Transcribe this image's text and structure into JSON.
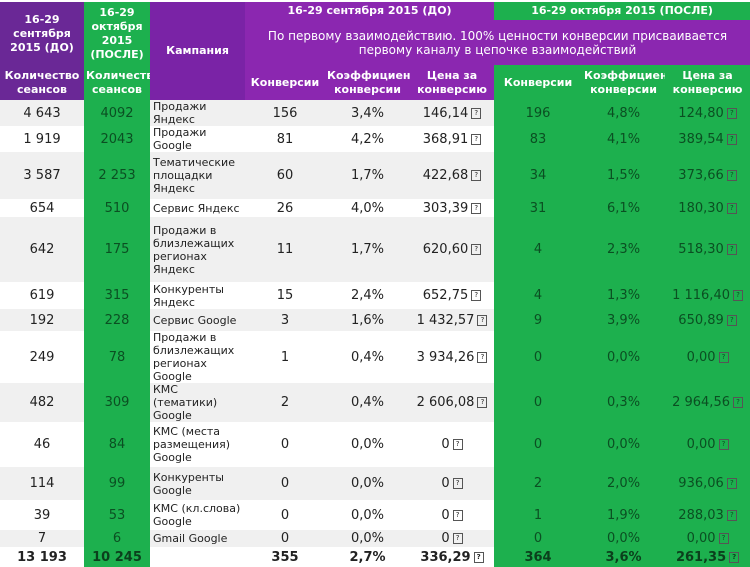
{
  "header": {
    "before_period": "16-29 сентября 2015 (ДО)",
    "after_period": "16-29 октября 2015 (ПОСЛЕ)",
    "sessions": "Количество сеансов",
    "campaign": "Кампания",
    "period_before_top": "16-29 сентября 2015 (ДО)",
    "period_after_top": "16-29 октября 2015 (ПОСЛЕ)",
    "model": "По первому взаимодействию. 100% ценности конверсии присваивается первому каналу в цепочке взаимодействий",
    "conv": "Конверсии",
    "rate": "Коэффициент конверсии",
    "cpa": "Цена за конверсию"
  },
  "rows": [
    [
      "4 643",
      "4092",
      "Продажи Яндекс",
      "156",
      "3,4%",
      "146,14",
      "196",
      "4,8%",
      "124,80"
    ],
    [
      "1 919",
      "2043",
      "Продажи Google",
      "81",
      "4,2%",
      "368,91",
      "83",
      "4,1%",
      "389,54"
    ],
    [
      "3 587",
      "2 253",
      "Тематические площадки Яндекс",
      "60",
      "1,7%",
      "422,68",
      "34",
      "1,5%",
      "373,66"
    ],
    [
      "654",
      "510",
      "Сервис Яндекс",
      "26",
      "4,0%",
      "303,39",
      "31",
      "6,1%",
      "180,30"
    ],
    [
      "642",
      "175",
      "Продажи в близлежащих регионах Яндекс",
      "11",
      "1,7%",
      "620,60",
      "4",
      "2,3%",
      "518,30"
    ],
    [
      "619",
      "315",
      "Конкуренты Яндекс",
      "15",
      "2,4%",
      "652,75",
      "4",
      "1,3%",
      "1 116,40"
    ],
    [
      "192",
      "228",
      "Сервис Google",
      "3",
      "1,6%",
      "1 432,57",
      "9",
      "3,9%",
      "650,89"
    ],
    [
      "249",
      "78",
      "Продажи в близлежащих регионах Google",
      "1",
      "0,4%",
      "3 934,26",
      "0",
      "0,0%",
      "0,00"
    ],
    [
      "482",
      "309",
      "КМС (тематики) Google",
      "2",
      "0,4%",
      "2 606,08",
      "0",
      "0,3%",
      "2 964,56"
    ],
    [
      "46",
      "84",
      "КМС (места размещения) Google",
      "0",
      "0,0%",
      "0",
      "0",
      "0,0%",
      "0,00"
    ],
    [
      "114",
      "99",
      "Конкуренты Google",
      "0",
      "0,0%",
      "0",
      "2",
      "2,0%",
      "936,06"
    ],
    [
      "39",
      "53",
      "КМС (кл.слова) Google",
      "0",
      "0,0%",
      "0",
      "1",
      "1,9%",
      "288,03"
    ],
    [
      "7",
      "6",
      "Gmail Google",
      "0",
      "0,0%",
      "0",
      "0",
      "0,0%",
      "0,00"
    ]
  ],
  "totals": [
    "13 193",
    "10 245",
    "",
    "355",
    "2,7%",
    "336,29",
    "364",
    "3,6%",
    "261,35"
  ],
  "currency_icon": "?"
}
